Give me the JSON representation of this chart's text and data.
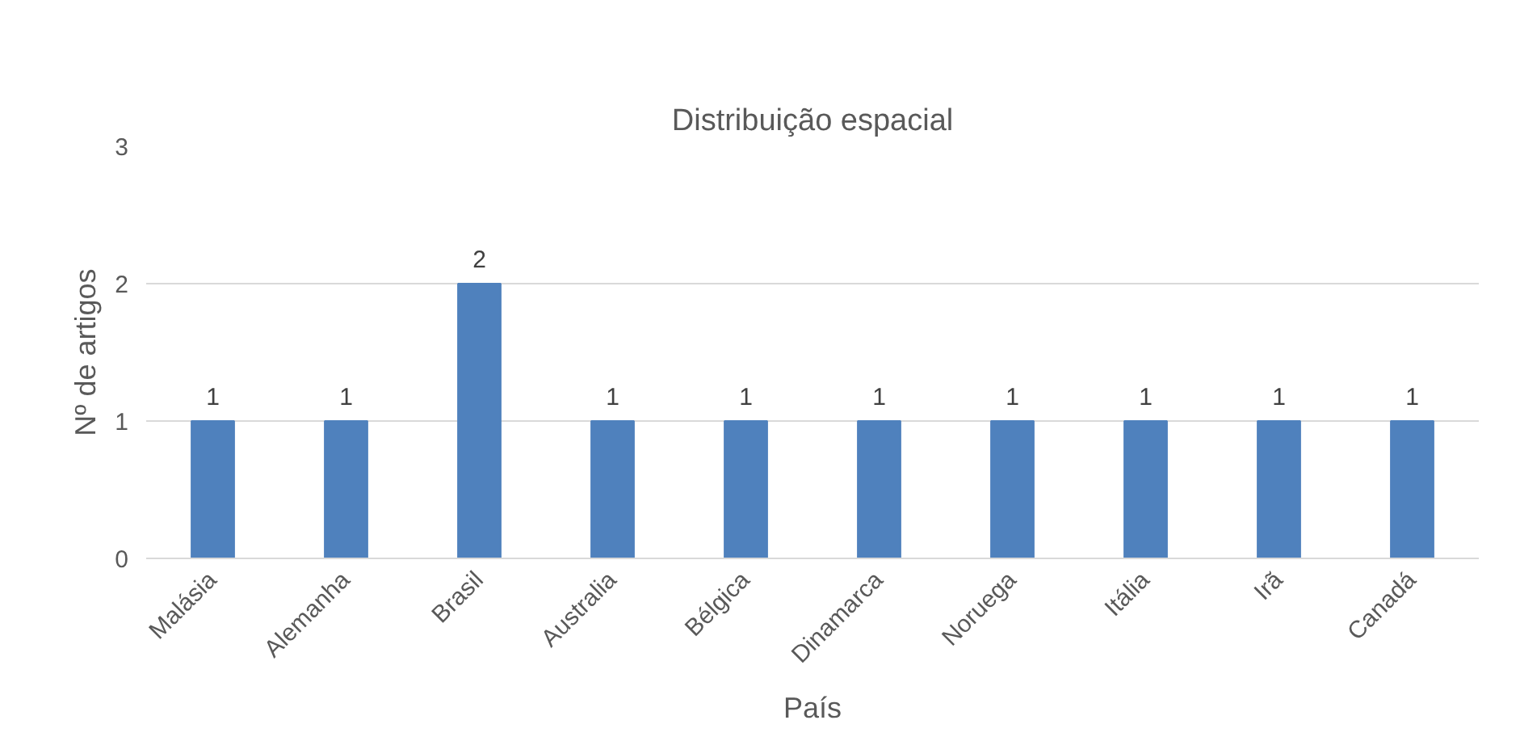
{
  "chart_data": {
    "type": "bar",
    "title": "Distribuição espacial",
    "xlabel": "País",
    "ylabel": "Nº de artigos",
    "categories": [
      "Malásia",
      "Alemanha",
      "Brasil",
      "Australia",
      "Bélgica",
      "Dinamarca",
      "Noruega",
      "Itália",
      "Irã",
      "Canadá"
    ],
    "values": [
      1,
      1,
      2,
      1,
      1,
      1,
      1,
      1,
      1,
      1
    ],
    "color": "#4f81bd",
    "ylim": [
      0,
      3
    ],
    "yticks": [
      0,
      1,
      2,
      3
    ],
    "grid": "y",
    "data_labels": true
  }
}
